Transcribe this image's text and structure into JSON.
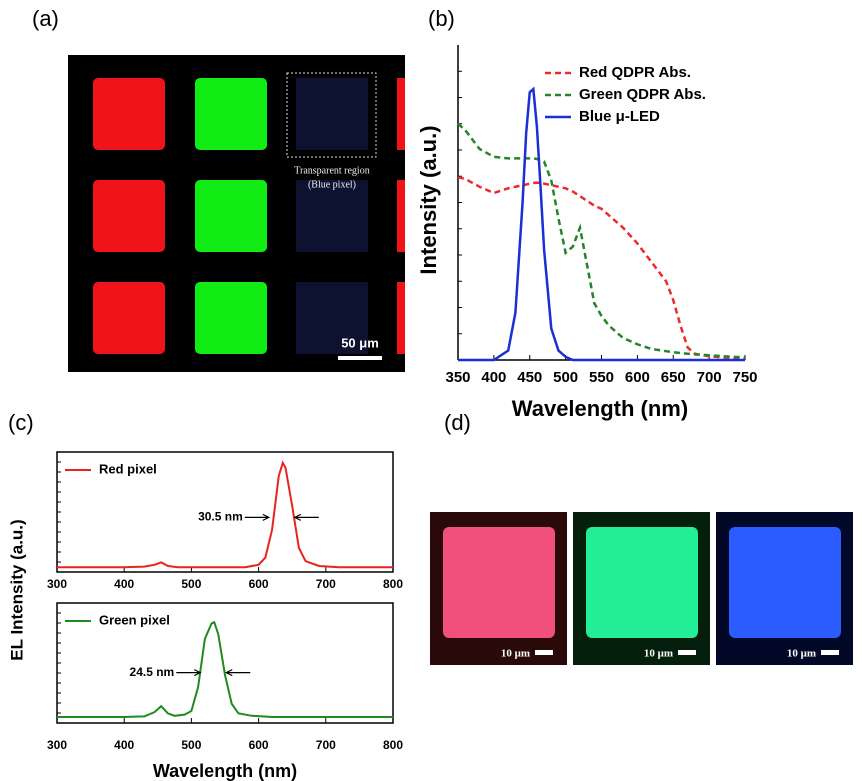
{
  "panel_labels": [
    "(a)",
    "(b)",
    "(c)",
    "(d)"
  ],
  "image_a": {
    "annotation": [
      "Transparent region",
      "(Blue pixel)"
    ],
    "scale_bar": "50 μm"
  },
  "image_d": {
    "scale_bars": [
      "10 μm",
      "10 μm",
      "10 μm"
    ]
  },
  "chart_data": [
    {
      "type": "line",
      "ylabel": "Intensity (a.u.)",
      "xlabel": "Wavelength (nm)",
      "xlim": [
        350,
        750
      ],
      "xticks": [
        350,
        400,
        450,
        500,
        550,
        600,
        650,
        700,
        750
      ],
      "ylim": [
        0,
        1
      ],
      "legend": "upper right",
      "x": [
        350,
        360,
        380,
        400,
        420,
        430,
        440,
        445,
        450,
        455,
        460,
        465,
        470,
        480,
        490,
        500,
        510,
        520,
        530,
        540,
        550,
        560,
        580,
        600,
        620,
        640,
        650,
        660,
        670,
        680,
        700,
        720,
        750
      ],
      "series": [
        {
          "name": "Red QDPR Abs.",
          "color": "#ee2a2a",
          "dash": true,
          "values": [
            0.58,
            0.575,
            0.55,
            0.53,
            0.545,
            0.55,
            0.555,
            0.557,
            0.56,
            0.562,
            0.563,
            0.562,
            0.56,
            0.555,
            0.55,
            0.545,
            0.535,
            0.52,
            0.505,
            0.49,
            0.48,
            0.46,
            0.42,
            0.37,
            0.31,
            0.25,
            0.19,
            0.11,
            0.04,
            0.02,
            0.012,
            0.008,
            0.005
          ]
        },
        {
          "name": "Green QDPR Abs.",
          "color": "#23862a",
          "dash": true,
          "values": [
            0.75,
            0.73,
            0.67,
            0.645,
            0.64,
            0.64,
            0.64,
            0.64,
            0.64,
            0.64,
            0.638,
            0.635,
            0.63,
            0.57,
            0.45,
            0.34,
            0.36,
            0.42,
            0.3,
            0.18,
            0.14,
            0.11,
            0.07,
            0.05,
            0.035,
            0.028,
            0.025,
            0.022,
            0.02,
            0.018,
            0.015,
            0.012,
            0.008
          ]
        },
        {
          "name": "Blue μ-LED",
          "color": "#1a2fd6",
          "dash": false,
          "values": [
            0,
            0,
            0,
            0,
            0.03,
            0.15,
            0.5,
            0.72,
            0.85,
            0.86,
            0.74,
            0.55,
            0.35,
            0.1,
            0.03,
            0.01,
            0,
            0,
            0,
            0,
            0,
            0,
            0,
            0,
            0,
            0,
            0,
            0,
            0,
            0,
            0,
            0,
            0
          ]
        }
      ]
    },
    {
      "type": "line",
      "ylabel": "EL Intensity (a.u.)",
      "annotation": "30.5 nm",
      "xlim": [
        300,
        800
      ],
      "xticks": [
        300,
        400,
        500,
        600,
        700,
        800
      ],
      "ylim": [
        0,
        1
      ],
      "legend": "upper left",
      "box": true,
      "x": [
        300,
        350,
        400,
        430,
        445,
        455,
        465,
        480,
        520,
        580,
        600,
        610,
        620,
        630,
        636,
        640,
        650,
        660,
        670,
        690,
        720,
        800
      ],
      "series": [
        {
          "name": "Red pixel",
          "color": "#e8241e",
          "dash": false,
          "values": [
            0.04,
            0.04,
            0.04,
            0.045,
            0.06,
            0.08,
            0.05,
            0.04,
            0.04,
            0.04,
            0.06,
            0.12,
            0.35,
            0.8,
            0.91,
            0.87,
            0.55,
            0.2,
            0.09,
            0.05,
            0.04,
            0.04
          ]
        }
      ]
    },
    {
      "type": "line",
      "xlabel": "Wavelength (nm)",
      "annotation": "24.5 nm",
      "xlim": [
        300,
        800
      ],
      "xticks": [
        300,
        400,
        500,
        600,
        700,
        800
      ],
      "ylim": [
        0,
        1
      ],
      "legend": "upper left",
      "box": true,
      "x": [
        300,
        350,
        400,
        430,
        445,
        455,
        465,
        475,
        490,
        500,
        510,
        520,
        530,
        534,
        540,
        550,
        560,
        570,
        590,
        620,
        700,
        800
      ],
      "series": [
        {
          "name": "Green pixel",
          "color": "#1f8a1f",
          "dash": false,
          "values": [
            0.05,
            0.05,
            0.05,
            0.055,
            0.09,
            0.14,
            0.08,
            0.06,
            0.07,
            0.1,
            0.3,
            0.7,
            0.83,
            0.84,
            0.74,
            0.4,
            0.16,
            0.08,
            0.06,
            0.05,
            0.05,
            0.05
          ]
        }
      ]
    }
  ]
}
